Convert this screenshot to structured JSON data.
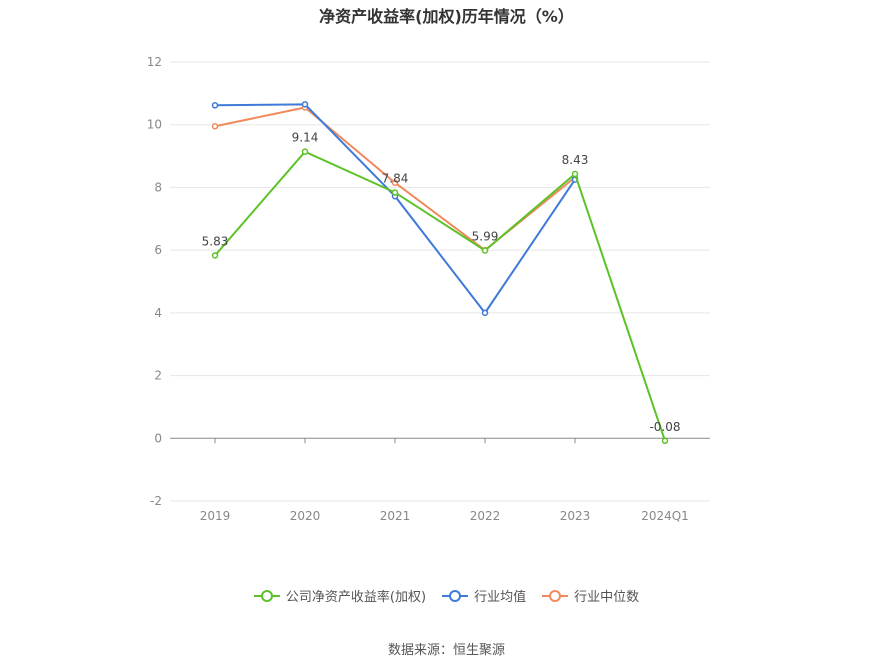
{
  "title": "净资产收益率(加权)历年情况（%）",
  "source": "数据来源：恒生聚源",
  "chart_data": {
    "type": "line",
    "categories": [
      "2019",
      "2020",
      "2021",
      "2022",
      "2023",
      "2024Q1"
    ],
    "ylim": [
      -2,
      12
    ],
    "yticks": [
      -2,
      0,
      2,
      4,
      6,
      8,
      10,
      12
    ],
    "grid": true,
    "legend_position": "bottom",
    "series": [
      {
        "name": "公司净资产收益率(加权)",
        "color": "#5cc227",
        "values": [
          5.83,
          9.14,
          7.84,
          5.99,
          8.43,
          -0.08
        ],
        "labels": [
          "5.83",
          "9.14",
          "7.84",
          "5.99",
          "8.43",
          "-0.08"
        ]
      },
      {
        "name": "行业均值",
        "color": "#3f7ad8",
        "values": [
          10.62,
          10.65,
          7.72,
          4.0,
          8.25,
          null
        ]
      },
      {
        "name": "行业中位数",
        "color": "#f08a5d",
        "values": [
          9.95,
          10.55,
          8.15,
          6.0,
          8.32,
          null
        ]
      }
    ]
  }
}
